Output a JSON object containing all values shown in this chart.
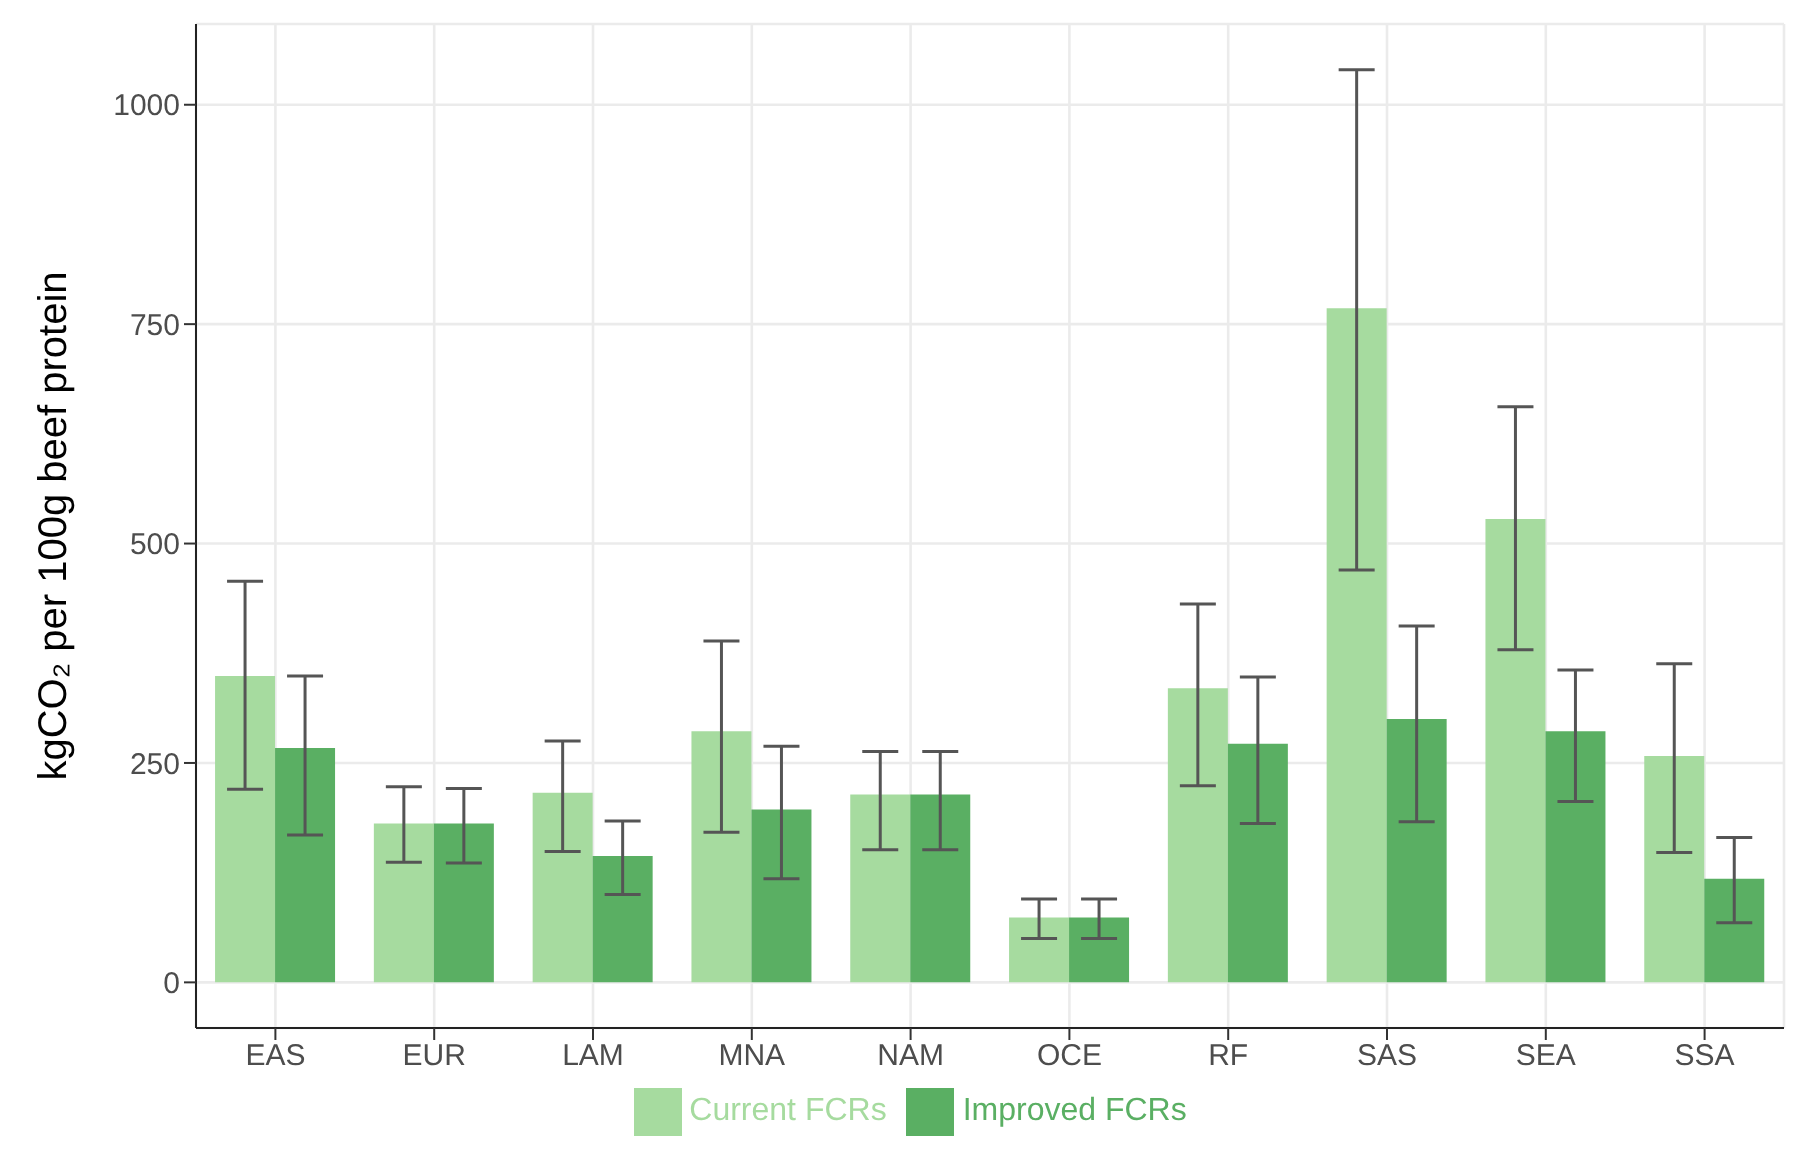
{
  "chart_data": {
    "type": "bar",
    "ylabel": "kgCO₂ per 100g beef protein",
    "categories": [
      "EAS",
      "EUR",
      "LAM",
      "MNA",
      "NAM",
      "OCE",
      "RF",
      "SAS",
      "SEA",
      "SSA"
    ],
    "series": [
      {
        "name": "Current FCRs",
        "color": "#a6db9f",
        "values": [
          349,
          181,
          216,
          286,
          214,
          74,
          335,
          768,
          528,
          258
        ],
        "errors": [
          [
            220,
            457
          ],
          [
            137,
            223
          ],
          [
            149,
            275
          ],
          [
            171,
            389
          ],
          [
            151,
            263
          ],
          [
            50,
            95
          ],
          [
            224,
            431
          ],
          [
            470,
            1040
          ],
          [
            379,
            656
          ],
          [
            148,
            363
          ]
        ]
      },
      {
        "name": "Improved FCRs",
        "color": "#5aaf63",
        "values": [
          267,
          181,
          144,
          197,
          214,
          74,
          272,
          300,
          286,
          118
        ],
        "errors": [
          [
            168,
            349
          ],
          [
            136,
            221
          ],
          [
            100,
            184
          ],
          [
            118,
            269
          ],
          [
            151,
            263
          ],
          [
            50,
            95
          ],
          [
            181,
            348
          ],
          [
            183,
            406
          ],
          [
            206,
            356
          ],
          [
            68,
            165
          ]
        ]
      }
    ],
    "ylim": [
      -52,
      1092
    ],
    "yticks": [
      0,
      250,
      500,
      750,
      1000
    ],
    "grid": true,
    "legend": "bottom"
  }
}
